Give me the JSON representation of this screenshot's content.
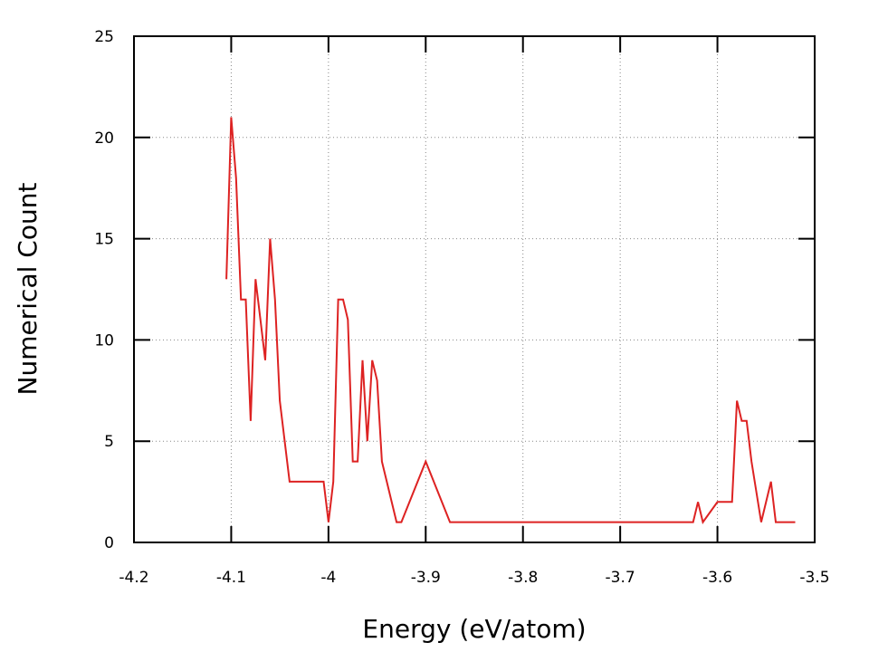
{
  "chart_data": {
    "type": "line",
    "title": "",
    "xlabel": "Energy (eV/atom)",
    "ylabel": "Numerical Count",
    "xlim": [
      -4.2,
      -3.5
    ],
    "ylim": [
      0,
      25
    ],
    "x_ticks": [
      -4.2,
      -4.1,
      -4.0,
      -3.9,
      -3.8,
      -3.7,
      -3.6,
      -3.5
    ],
    "x_tick_labels": [
      "-4.2",
      "-4.1",
      "-4",
      "-3.9",
      "-3.8",
      "-3.7",
      "-3.6",
      "-3.5"
    ],
    "y_ticks": [
      0,
      5,
      10,
      15,
      20,
      25
    ],
    "y_tick_labels": [
      "0",
      "5",
      "10",
      "15",
      "20",
      "25"
    ],
    "grid": true,
    "series": [
      {
        "color": "#dd2222",
        "x": [
          -4.105,
          -4.1,
          -4.095,
          -4.09,
          -4.085,
          -4.08,
          -4.075,
          -4.07,
          -4.065,
          -4.06,
          -4.055,
          -4.05,
          -4.04,
          -4.03,
          -4.02,
          -4.01,
          -4.005,
          -4.0,
          -3.995,
          -3.99,
          -3.985,
          -3.98,
          -3.975,
          -3.97,
          -3.965,
          -3.96,
          -3.955,
          -3.95,
          -3.945,
          -3.94,
          -3.93,
          -3.925,
          -3.9,
          -3.875,
          -3.625,
          -3.62,
          -3.615,
          -3.6,
          -3.585,
          -3.58,
          -3.575,
          -3.57,
          -3.565,
          -3.555,
          -3.545,
          -3.54,
          -3.52
        ],
        "y": [
          13,
          21,
          18,
          12,
          12,
          6,
          13,
          11,
          9,
          15,
          12,
          7,
          3,
          3,
          3,
          3,
          3,
          1,
          3,
          12,
          12,
          11,
          4,
          4,
          9,
          5,
          9,
          8,
          4,
          3,
          1,
          1,
          4,
          1,
          1,
          2,
          1,
          2,
          2,
          7,
          6,
          6,
          4,
          1,
          3,
          1,
          1
        ]
      }
    ]
  }
}
